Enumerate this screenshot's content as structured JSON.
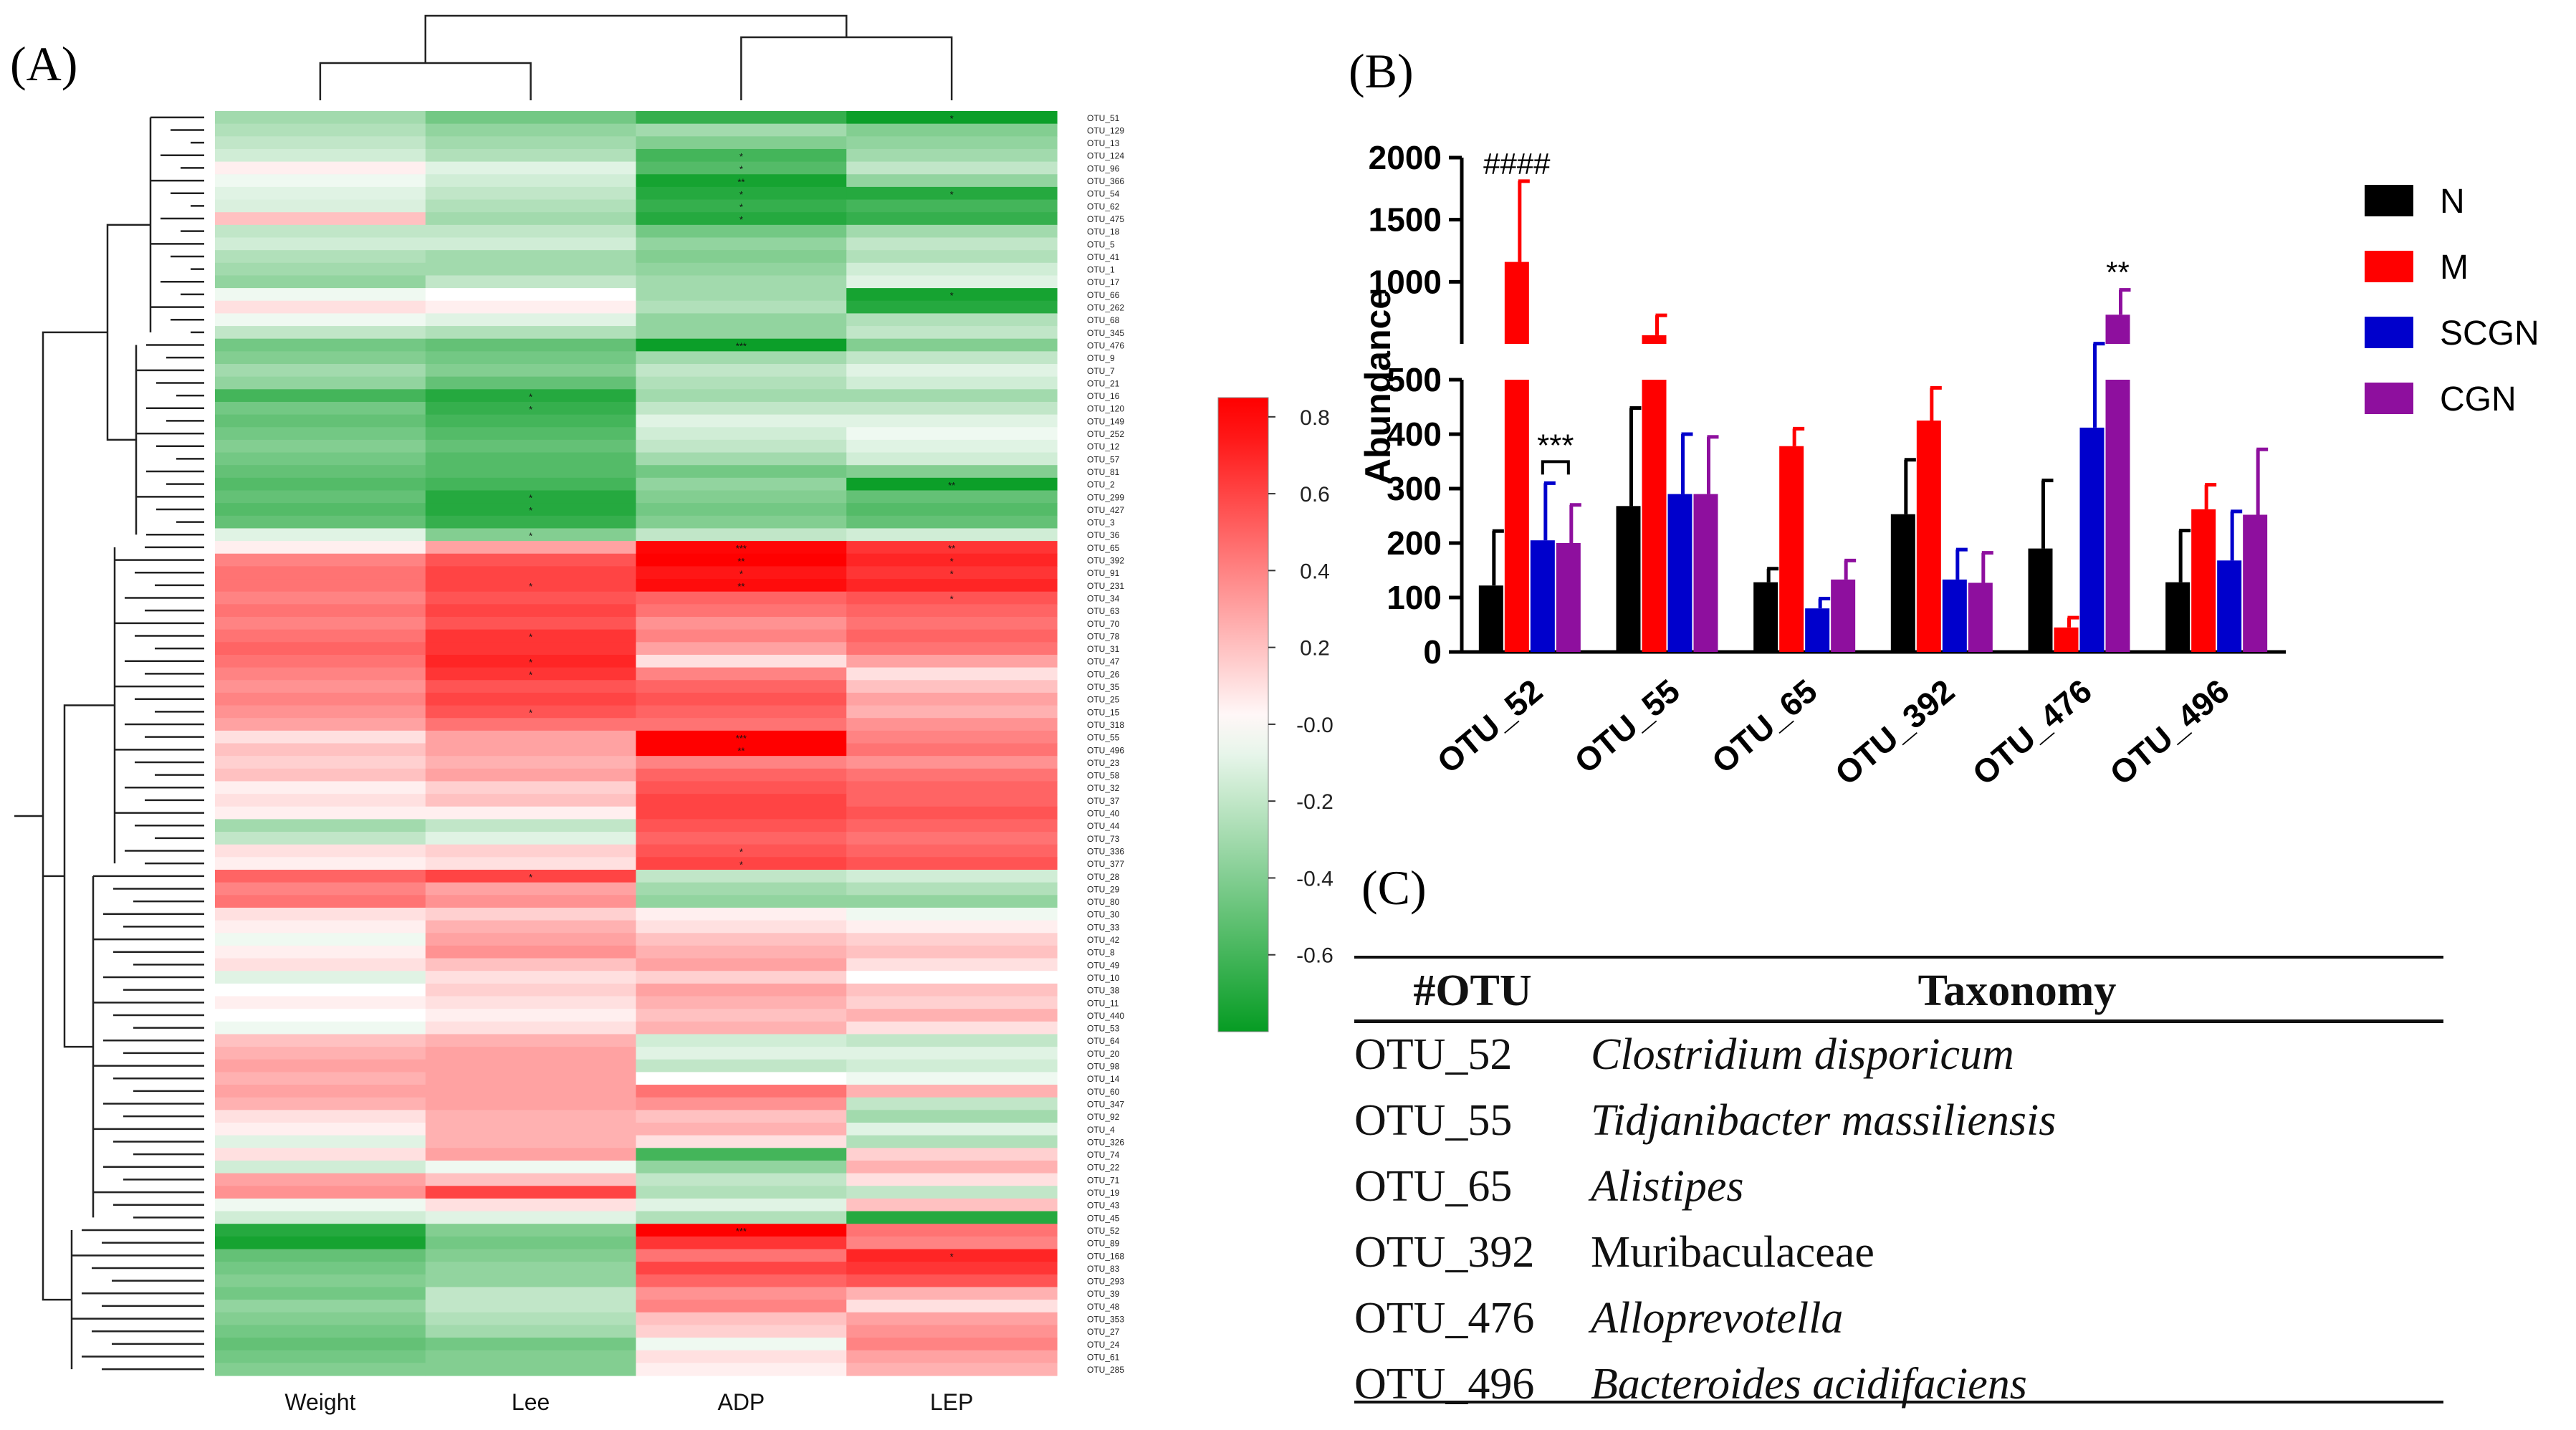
{
  "panels": {
    "a_label": "(A)",
    "b_label": "(B)",
    "c_label": "(C)"
  },
  "chart_data": [
    {
      "type": "heatmap",
      "panel": "A",
      "columns": [
        "Weight",
        "Lee",
        "ADP",
        "LEP"
      ],
      "rows": [
        "OTU_51",
        "OTU_129",
        "OTU_13",
        "OTU_124",
        "OTU_96",
        "OTU_366",
        "OTU_54",
        "OTU_62",
        "OTU_475",
        "OTU_18",
        "OTU_5",
        "OTU_41",
        "OTU_1",
        "OTU_17",
        "OTU_66",
        "OTU_262",
        "OTU_68",
        "OTU_345",
        "OTU_476",
        "OTU_9",
        "OTU_7",
        "OTU_21",
        "OTU_16",
        "OTU_120",
        "OTU_149",
        "OTU_252",
        "OTU_12",
        "OTU_57",
        "OTU_81",
        "OTU_2",
        "OTU_299",
        "OTU_427",
        "OTU_3",
        "OTU_36",
        "OTU_65",
        "OTU_392",
        "OTU_91",
        "OTU_231",
        "OTU_34",
        "OTU_63",
        "OTU_70",
        "OTU_78",
        "OTU_31",
        "OTU_47",
        "OTU_26",
        "OTU_35",
        "OTU_25",
        "OTU_15",
        "OTU_318",
        "OTU_55",
        "OTU_496",
        "OTU_23",
        "OTU_58",
        "OTU_32",
        "OTU_37",
        "OTU_40",
        "OTU_44",
        "OTU_73",
        "OTU_336",
        "OTU_377",
        "OTU_28",
        "OTU_29",
        "OTU_80",
        "OTU_30",
        "OTU_33",
        "OTU_42",
        "OTU_8",
        "OTU_49",
        "OTU_10",
        "OTU_38",
        "OTU_11",
        "OTU_440",
        "OTU_53",
        "OTU_64",
        "OTU_20",
        "OTU_98",
        "OTU_14",
        "OTU_60",
        "OTU_347",
        "OTU_92",
        "OTU_4",
        "OTU_326",
        "OTU_74",
        "OTU_22",
        "OTU_71",
        "OTU_19",
        "OTU_43",
        "OTU_45",
        "OTU_52",
        "OTU_89",
        "OTU_168",
        "OTU_83",
        "OTU_293",
        "OTU_39",
        "OTU_48",
        "OTU_353",
        "OTU_27",
        "OTU_24",
        "OTU_61",
        "OTU_285"
      ],
      "values": [
        [
          -0.3,
          -0.45,
          -0.65,
          -0.78
        ],
        [
          -0.25,
          -0.35,
          -0.3,
          -0.4
        ],
        [
          -0.2,
          -0.3,
          -0.4,
          -0.35
        ],
        [
          -0.15,
          -0.25,
          -0.6,
          -0.3
        ],
        [
          0.05,
          -0.1,
          -0.55,
          -0.2
        ],
        [
          -0.05,
          -0.15,
          -0.75,
          -0.35
        ],
        [
          -0.1,
          -0.2,
          -0.7,
          -0.7
        ],
        [
          -0.12,
          -0.25,
          -0.65,
          -0.6
        ],
        [
          0.2,
          -0.3,
          -0.7,
          -0.65
        ],
        [
          -0.2,
          -0.2,
          -0.45,
          -0.3
        ],
        [
          -0.15,
          -0.15,
          -0.35,
          -0.2
        ],
        [
          -0.25,
          -0.3,
          -0.4,
          -0.25
        ],
        [
          -0.3,
          -0.3,
          -0.35,
          -0.15
        ],
        [
          -0.35,
          -0.2,
          -0.3,
          -0.1
        ],
        [
          -0.05,
          0.0,
          -0.3,
          -0.75
        ],
        [
          0.1,
          0.05,
          -0.25,
          -0.7
        ],
        [
          -0.05,
          -0.1,
          -0.35,
          -0.25
        ],
        [
          -0.2,
          -0.25,
          -0.35,
          -0.2
        ],
        [
          -0.45,
          -0.5,
          -0.78,
          -0.4
        ],
        [
          -0.4,
          -0.45,
          -0.3,
          -0.2
        ],
        [
          -0.3,
          -0.4,
          -0.2,
          -0.1
        ],
        [
          -0.35,
          -0.5,
          -0.25,
          -0.15
        ],
        [
          -0.6,
          -0.7,
          -0.3,
          -0.3
        ],
        [
          -0.45,
          -0.65,
          -0.2,
          -0.2
        ],
        [
          -0.5,
          -0.6,
          -0.1,
          -0.1
        ],
        [
          -0.45,
          -0.55,
          -0.15,
          -0.05
        ],
        [
          -0.4,
          -0.5,
          -0.2,
          -0.1
        ],
        [
          -0.45,
          -0.55,
          -0.3,
          -0.15
        ],
        [
          -0.5,
          -0.55,
          -0.45,
          -0.4
        ],
        [
          -0.55,
          -0.6,
          -0.35,
          -0.78
        ],
        [
          -0.5,
          -0.7,
          -0.4,
          -0.5
        ],
        [
          -0.55,
          -0.7,
          -0.45,
          -0.55
        ],
        [
          -0.5,
          -0.65,
          -0.4,
          -0.5
        ],
        [
          -0.1,
          -0.4,
          -0.2,
          -0.15
        ],
        [
          0.05,
          0.3,
          0.8,
          0.65
        ],
        [
          0.4,
          0.55,
          0.82,
          0.7
        ],
        [
          0.45,
          0.6,
          0.75,
          0.65
        ],
        [
          0.45,
          0.6,
          0.78,
          0.7
        ],
        [
          0.4,
          0.55,
          0.5,
          0.55
        ],
        [
          0.45,
          0.6,
          0.45,
          0.5
        ],
        [
          0.4,
          0.55,
          0.35,
          0.45
        ],
        [
          0.45,
          0.65,
          0.4,
          0.5
        ],
        [
          0.5,
          0.65,
          0.3,
          0.45
        ],
        [
          0.45,
          0.7,
          0.1,
          0.3
        ],
        [
          0.4,
          0.65,
          0.4,
          0.1
        ],
        [
          0.35,
          0.55,
          0.5,
          0.2
        ],
        [
          0.4,
          0.6,
          0.55,
          0.3
        ],
        [
          0.35,
          0.55,
          0.5,
          0.25
        ],
        [
          0.3,
          0.45,
          0.45,
          0.35
        ],
        [
          0.1,
          0.3,
          0.85,
          0.4
        ],
        [
          0.2,
          0.3,
          0.85,
          0.45
        ],
        [
          0.15,
          0.25,
          0.4,
          0.35
        ],
        [
          0.2,
          0.3,
          0.5,
          0.45
        ],
        [
          0.05,
          0.15,
          0.55,
          0.5
        ],
        [
          0.1,
          0.2,
          0.6,
          0.5
        ],
        [
          0.05,
          0.05,
          0.6,
          0.55
        ],
        [
          -0.3,
          -0.2,
          0.55,
          0.5
        ],
        [
          -0.2,
          -0.1,
          0.5,
          0.45
        ],
        [
          0.1,
          0.15,
          0.55,
          0.5
        ],
        [
          0.05,
          0.1,
          0.6,
          0.55
        ],
        [
          0.5,
          0.6,
          -0.2,
          -0.15
        ],
        [
          0.4,
          0.3,
          -0.3,
          -0.25
        ],
        [
          0.45,
          0.35,
          -0.35,
          -0.35
        ],
        [
          0.1,
          0.15,
          0.05,
          -0.05
        ],
        [
          0.05,
          0.25,
          0.1,
          0.05
        ],
        [
          -0.05,
          0.3,
          0.2,
          0.15
        ],
        [
          0.05,
          0.35,
          0.25,
          0.2
        ],
        [
          0.1,
          0.2,
          0.3,
          0.1
        ],
        [
          -0.1,
          0.1,
          0.15,
          0.0
        ],
        [
          0.0,
          0.15,
          0.3,
          0.2
        ],
        [
          0.05,
          0.1,
          0.25,
          0.15
        ],
        [
          0.0,
          0.05,
          0.2,
          0.25
        ],
        [
          -0.05,
          0.1,
          0.25,
          0.1
        ],
        [
          0.2,
          0.25,
          -0.15,
          -0.2
        ],
        [
          0.25,
          0.3,
          -0.1,
          -0.1
        ],
        [
          0.3,
          0.3,
          -0.2,
          -0.15
        ],
        [
          0.25,
          0.3,
          0.0,
          -0.05
        ],
        [
          0.3,
          0.3,
          0.45,
          0.25
        ],
        [
          0.25,
          0.3,
          0.35,
          -0.2
        ],
        [
          0.1,
          0.25,
          0.2,
          -0.3
        ],
        [
          0.05,
          0.25,
          0.25,
          -0.1
        ],
        [
          -0.1,
          0.25,
          0.1,
          -0.25
        ],
        [
          0.1,
          0.3,
          -0.6,
          0.15
        ],
        [
          -0.15,
          -0.05,
          -0.35,
          0.25
        ],
        [
          0.3,
          0.2,
          -0.2,
          0.1
        ],
        [
          0.35,
          0.6,
          -0.25,
          -0.2
        ],
        [
          -0.05,
          0.1,
          -0.1,
          0.2
        ],
        [
          -0.15,
          -0.1,
          -0.25,
          -0.7
        ],
        [
          -0.7,
          -0.4,
          0.82,
          0.45
        ],
        [
          -0.75,
          -0.45,
          0.65,
          0.4
        ],
        [
          -0.5,
          -0.4,
          0.45,
          0.7
        ],
        [
          -0.45,
          -0.35,
          0.6,
          0.65
        ],
        [
          -0.4,
          -0.35,
          0.5,
          0.55
        ],
        [
          -0.45,
          -0.2,
          0.35,
          0.25
        ],
        [
          -0.35,
          -0.2,
          0.4,
          0.1
        ],
        [
          -0.4,
          -0.25,
          0.2,
          0.3
        ],
        [
          -0.45,
          -0.3,
          0.15,
          0.35
        ],
        [
          -0.5,
          -0.45,
          -0.05,
          0.4
        ],
        [
          -0.45,
          -0.4,
          0.1,
          0.3
        ],
        [
          -0.4,
          -0.4,
          0.05,
          0.25
        ]
      ],
      "sig_marks": [
        [
          0,
          3,
          "*"
        ],
        [
          3,
          2,
          "*"
        ],
        [
          4,
          2,
          "*"
        ],
        [
          5,
          2,
          "**"
        ],
        [
          6,
          2,
          "*"
        ],
        [
          6,
          3,
          "*"
        ],
        [
          7,
          2,
          "*"
        ],
        [
          8,
          2,
          "*"
        ],
        [
          14,
          3,
          "*"
        ],
        [
          18,
          2,
          "***"
        ],
        [
          22,
          1,
          "*"
        ],
        [
          23,
          1,
          "*"
        ],
        [
          29,
          3,
          "**"
        ],
        [
          30,
          1,
          "*"
        ],
        [
          31,
          1,
          "*"
        ],
        [
          33,
          1,
          "*"
        ],
        [
          34,
          2,
          "***"
        ],
        [
          34,
          3,
          "**"
        ],
        [
          35,
          2,
          "**"
        ],
        [
          35,
          3,
          "*"
        ],
        [
          36,
          2,
          "*"
        ],
        [
          36,
          3,
          "*"
        ],
        [
          37,
          1,
          "*"
        ],
        [
          37,
          2,
          "**"
        ],
        [
          38,
          3,
          "*"
        ],
        [
          41,
          1,
          "*"
        ],
        [
          43,
          1,
          "*"
        ],
        [
          44,
          1,
          "*"
        ],
        [
          47,
          1,
          "*"
        ],
        [
          49,
          2,
          "***"
        ],
        [
          50,
          2,
          "**"
        ],
        [
          58,
          2,
          "*"
        ],
        [
          59,
          2,
          "*"
        ],
        [
          60,
          1,
          "*"
        ],
        [
          88,
          2,
          "***"
        ],
        [
          90,
          3,
          "*"
        ]
      ],
      "colorbar": {
        "min": -0.8,
        "max": 0.85,
        "ticks": [
          "0.8",
          "0.6",
          "0.4",
          "0.2",
          "-0.0",
          "-0.2",
          "-0.4",
          "-0.6"
        ],
        "tick_values": [
          0.8,
          0.6,
          0.4,
          0.2,
          0.0,
          -0.2,
          -0.4,
          -0.6
        ]
      },
      "colors": {
        "negative": "#009a1e",
        "zero": "#ffffff",
        "positive": "#ff0000"
      }
    },
    {
      "type": "bar",
      "panel": "B",
      "categories": [
        "OTU_52",
        "OTU_55",
        "OTU_65",
        "OTU_392",
        "OTU_476",
        "OTU_496"
      ],
      "ylabel": "Abundance",
      "y_ticks_lower": [
        "0",
        "100",
        "200",
        "300",
        "400",
        "500"
      ],
      "y_ticks_upper": [
        "500",
        "1000",
        "1500",
        "2000"
      ],
      "y_tick_values_lower": [
        0,
        100,
        200,
        300,
        400,
        500
      ],
      "y_tick_values_upper": [
        500,
        1000,
        1500,
        2000
      ],
      "axis_break": [
        500,
        500
      ],
      "series": [
        {
          "name": "N",
          "color": "#000000",
          "values": [
            122,
            268,
            128,
            253,
            190,
            128
          ],
          "errors": [
            100,
            180,
            25,
            100,
            125,
            95
          ]
        },
        {
          "name": "M",
          "color": "#ff0000",
          "values": [
            1160,
            570,
            378,
            425,
            45,
            262
          ],
          "errors": [
            650,
            160,
            32,
            60,
            18,
            45
          ]
        },
        {
          "name": "SCGN",
          "color": "#0000cc",
          "values": [
            205,
            290,
            80,
            133,
            412,
            168
          ],
          "errors": [
            105,
            110,
            18,
            55,
            90,
            90
          ]
        },
        {
          "name": "CGN",
          "color": "#8e0f9e",
          "values": [
            200,
            290,
            133,
            127,
            735,
            252
          ],
          "errors": [
            70,
            105,
            35,
            55,
            200,
            120
          ]
        }
      ],
      "annotations": [
        {
          "text": "####",
          "category": "OTU_52",
          "series": "M"
        },
        {
          "text": "***",
          "category": "OTU_52",
          "series": "SCGN"
        },
        {
          "text": "**",
          "category": "OTU_476",
          "series": "CGN"
        }
      ]
    }
  ],
  "taxonomy_table": {
    "headers": [
      "#OTU",
      "Taxonomy"
    ],
    "rows": [
      {
        "otu": "OTU_52",
        "taxonomy": "Clostridium disporicum"
      },
      {
        "otu": "OTU_55",
        "taxonomy": "Tidjanibacter massiliensis"
      },
      {
        "otu": "OTU_65",
        "taxonomy": "Alistipes"
      },
      {
        "otu": "OTU_392",
        "taxonomy": "Muribaculaceae"
      },
      {
        "otu": "OTU_476",
        "taxonomy": "Alloprevotella"
      },
      {
        "otu": "OTU_496",
        "taxonomy": "Bacteroides acidifaciens"
      }
    ]
  }
}
